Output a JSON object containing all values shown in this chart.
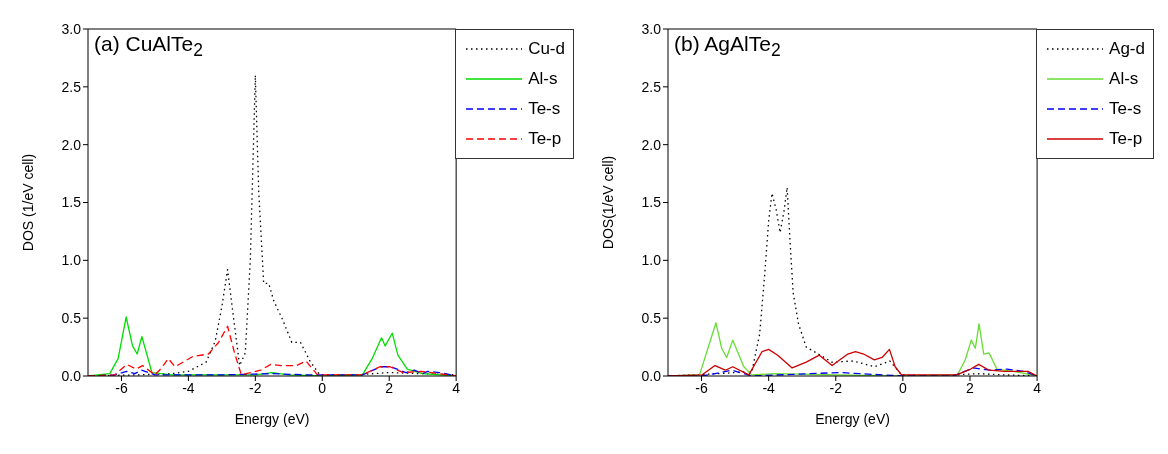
{
  "chart_data": [
    {
      "type": "line",
      "title": "(a) CuAlTe$_{2}$",
      "xlabel": "Energy (eV)",
      "ylabel": "DOS (1/eV cell)",
      "xlim": [
        -7,
        4
      ],
      "ylim": [
        0,
        3
      ],
      "xticks": [
        -6,
        -4,
        -2,
        0,
        2,
        4
      ],
      "yticks": [
        {
          "value": 0,
          "label": "0.0"
        },
        {
          "value": 0.5,
          "label": "0.5"
        },
        {
          "value": 1,
          "label": "1.0"
        },
        {
          "value": 1.5,
          "label": "1.5"
        },
        {
          "value": 2,
          "label": "2.0"
        },
        {
          "value": 2.5,
          "label": "2.5"
        },
        {
          "value": 3,
          "label": "3.0"
        }
      ],
      "legend": "top right",
      "marker": "none",
      "series": [
        {
          "name": "Cu-d",
          "color": "#000000",
          "line_style": "dotted",
          "x": [
            -7,
            -5.5,
            -4.5,
            -4.0,
            -3.47,
            -3.2,
            -3.0,
            -2.83,
            -2.65,
            -2.47,
            -2.3,
            -2.15,
            -2.0,
            -1.9,
            -1.75,
            -1.6,
            -1.45,
            -1.19,
            -0.91,
            -0.65,
            -0.37,
            -0.07,
            1,
            2,
            3,
            4
          ],
          "values": [
            0,
            0.01,
            0.02,
            0.04,
            0.12,
            0.3,
            0.6,
            0.92,
            0.5,
            0.09,
            0.2,
            1.0,
            2.6,
            1.6,
            0.8,
            0.8,
            0.65,
            0.49,
            0.29,
            0.29,
            0.13,
            0.01,
            0.01,
            0.03,
            0.02,
            0.01
          ]
        },
        {
          "name": "Al-s",
          "color": "#00dd00",
          "line_style": "solid",
          "x": [
            -7,
            -6.35,
            -6.1,
            -5.86,
            -5.67,
            -5.53,
            -5.39,
            -5.09,
            -4.5,
            -2,
            -1.5,
            -1,
            0,
            1.2,
            1.49,
            1.77,
            1.88,
            2.09,
            2.26,
            2.54,
            3,
            4
          ],
          "values": [
            0,
            0.02,
            0.15,
            0.51,
            0.26,
            0.19,
            0.34,
            0.03,
            0.01,
            0.01,
            0.03,
            0.01,
            0,
            0.01,
            0.15,
            0.33,
            0.26,
            0.37,
            0.18,
            0.06,
            0.02,
            0
          ]
        },
        {
          "name": "Te-s",
          "color": "#0000ff",
          "line_style": "dashed",
          "x": [
            -7,
            -6.2,
            -5.85,
            -5.6,
            -5.4,
            -5.0,
            -3,
            -1.5,
            -0.5,
            1.2,
            1.75,
            2.05,
            2.5,
            2.75,
            3.0,
            3.15,
            3.5,
            4
          ],
          "values": [
            0,
            0.01,
            0.04,
            0.02,
            0.05,
            0.01,
            0.01,
            0.02,
            0.01,
            0.01,
            0.08,
            0.08,
            0.03,
            0.05,
            0.02,
            0.04,
            0.03,
            0
          ]
        },
        {
          "name": "Te-p",
          "color": "#ff0000",
          "line_style": "dashed",
          "x": [
            -7,
            -6.2,
            -5.84,
            -5.56,
            -5.37,
            -5.0,
            -4.83,
            -4.6,
            -4.4,
            -3.86,
            -3.4,
            -3.1,
            -2.83,
            -2.63,
            -2.42,
            -1.84,
            -1.54,
            -1.23,
            -0.77,
            -0.49,
            -0.14,
            1.2,
            1.72,
            2.02,
            2.42,
            2.95,
            3.5,
            4
          ],
          "values": [
            0,
            0.01,
            0.1,
            0.06,
            0.09,
            0.01,
            0.06,
            0.15,
            0.08,
            0.17,
            0.19,
            0.29,
            0.43,
            0.21,
            0.01,
            0.05,
            0.1,
            0.09,
            0.09,
            0.13,
            0.01,
            0.01,
            0.08,
            0.08,
            0.03,
            0.04,
            0.02,
            0
          ]
        }
      ]
    },
    {
      "type": "line",
      "title": "(b) AgAlTe$_{2}$",
      "xlabel": "Energy (eV)",
      "ylabel": "DOS(1/eV cell)",
      "xlim": [
        -7,
        4
      ],
      "ylim": [
        0,
        3
      ],
      "xticks": [
        -6,
        -4,
        -2,
        0,
        2,
        4
      ],
      "yticks": [
        {
          "value": 0,
          "label": "0.0"
        },
        {
          "value": 0.5,
          "label": "0.5"
        },
        {
          "value": 1,
          "label": "1.0"
        },
        {
          "value": 1.5,
          "label": "1.5"
        },
        {
          "value": 2,
          "label": "2.0"
        },
        {
          "value": 2.5,
          "label": "2.5"
        },
        {
          "value": 3,
          "label": "3.0"
        }
      ],
      "legend": "top right",
      "marker": "none",
      "series": [
        {
          "name": "Ag-d",
          "color": "#000000",
          "line_style": "dotted",
          "x": [
            -7,
            -5.5,
            -4.5,
            -4.27,
            -4.12,
            -4.0,
            -3.9,
            -3.77,
            -3.66,
            -3.54,
            -3.45,
            -3.37,
            -3.27,
            -3.11,
            -2.88,
            -2.58,
            -2.11,
            -1.48,
            -0.85,
            -0.39,
            -0.04,
            1,
            2.2,
            3,
            4
          ],
          "values": [
            0,
            0.02,
            0.04,
            0.36,
            0.87,
            1.34,
            1.58,
            1.43,
            1.24,
            1.43,
            1.63,
            1.2,
            0.72,
            0.45,
            0.25,
            0.2,
            0.12,
            0.13,
            0.08,
            0.13,
            0.01,
            0,
            0.02,
            0.01,
            0
          ]
        },
        {
          "name": "Al-s",
          "color": "#66dd33",
          "line_style": "solid",
          "x": [
            -7,
            -6.06,
            -5.57,
            -5.4,
            -5.25,
            -5.07,
            -4.74,
            -4.5,
            -3.8,
            -2,
            0,
            1.63,
            1.86,
            2.04,
            2.16,
            2.27,
            2.41,
            2.57,
            2.8,
            3.5,
            4
          ],
          "values": [
            0,
            0.01,
            0.46,
            0.24,
            0.16,
            0.31,
            0.08,
            0.01,
            0.02,
            0.01,
            0,
            0.01,
            0.14,
            0.31,
            0.24,
            0.45,
            0.19,
            0.2,
            0.06,
            0.03,
            0
          ]
        },
        {
          "name": "Te-s",
          "color": "#0000ff",
          "line_style": "dashed",
          "x": [
            -7,
            -6,
            -5.6,
            -5.1,
            -4.5,
            -1.9,
            0,
            1.5,
            2.1,
            2.6,
            3.1,
            3.6,
            4
          ],
          "values": [
            0,
            0,
            0.02,
            0.05,
            0,
            0.03,
            0,
            0,
            0.07,
            0.05,
            0.06,
            0.04,
            0
          ]
        },
        {
          "name": "Te-p",
          "color": "#cc0000",
          "line_style": "solid",
          "x": [
            -7,
            -5.98,
            -5.6,
            -5.29,
            -5.07,
            -4.59,
            -4.2,
            -4.0,
            -3.73,
            -3.3,
            -2.88,
            -2.49,
            -2.11,
            -1.64,
            -1.41,
            -1.17,
            -0.85,
            -0.62,
            -0.4,
            -0.23,
            -0.04,
            1.6,
            2.02,
            2.26,
            2.57,
            3.03,
            3.73,
            4
          ],
          "values": [
            0,
            0.01,
            0.09,
            0.05,
            0.08,
            0.01,
            0.21,
            0.23,
            0.18,
            0.07,
            0.12,
            0.18,
            0.09,
            0.19,
            0.21,
            0.19,
            0.14,
            0.16,
            0.23,
            0.08,
            0.01,
            0.01,
            0.06,
            0.1,
            0.05,
            0.04,
            0.04,
            0
          ]
        }
      ]
    }
  ]
}
